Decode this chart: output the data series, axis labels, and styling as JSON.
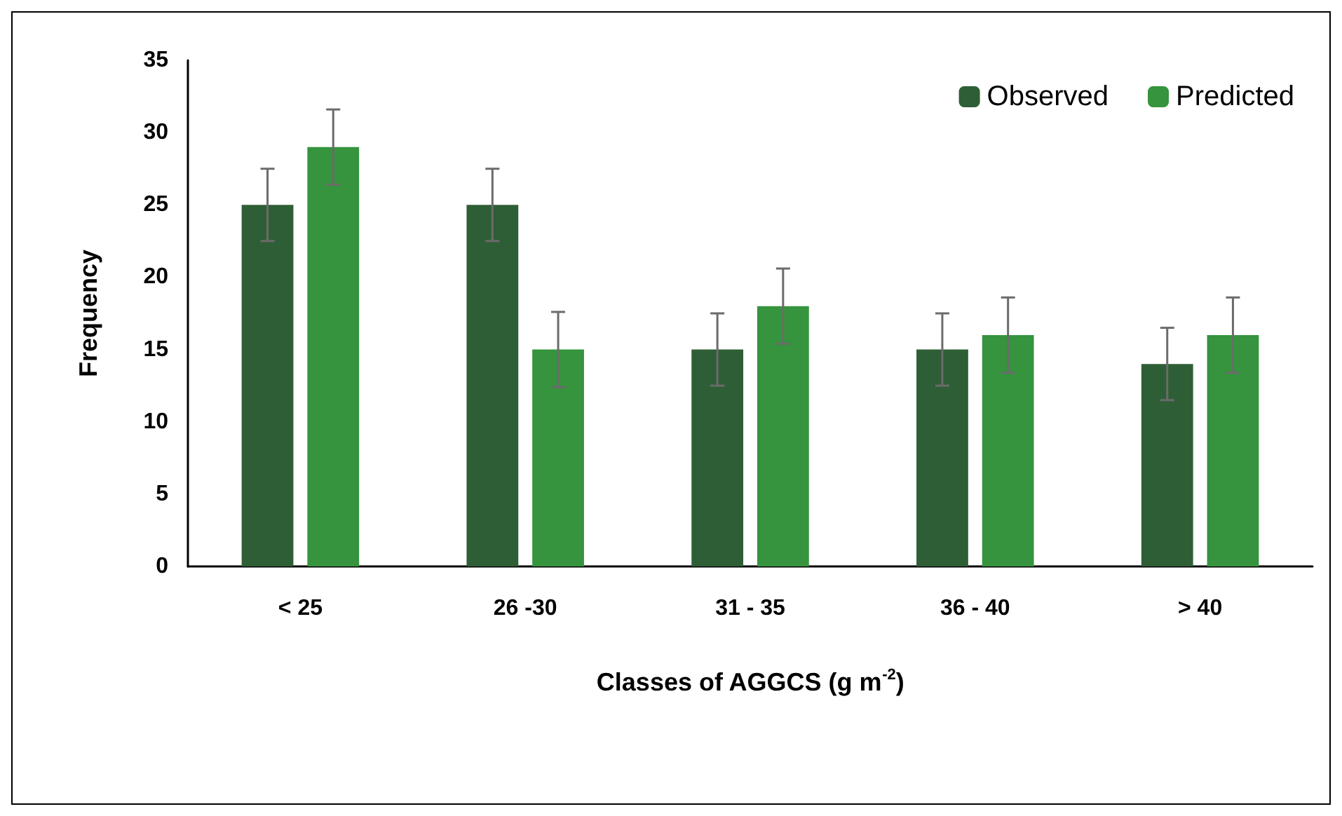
{
  "chart_data": {
    "type": "bar",
    "xlabel": "Classes of AGGCS (g m$^{-2}$)",
    "ylabel": "Frequency",
    "categories": [
      "< 25",
      "26 -30",
      "31 - 35",
      "36 - 40",
      "> 40"
    ],
    "series": [
      {
        "name": "Observed",
        "color": "#2e5e35",
        "values": [
          25,
          25,
          15,
          15,
          14
        ],
        "errors": [
          2.5,
          2.5,
          2.5,
          2.5,
          2.5
        ]
      },
      {
        "name": "Predicted",
        "color": "#35943d",
        "values": [
          29,
          15,
          18,
          16,
          16
        ],
        "errors": [
          2.6,
          2.6,
          2.6,
          2.6,
          2.6
        ]
      }
    ],
    "ylim": [
      0,
      35
    ],
    "yticks": [
      0,
      5,
      10,
      15,
      20,
      25,
      30,
      35
    ],
    "grid": false,
    "legend": "top right"
  }
}
